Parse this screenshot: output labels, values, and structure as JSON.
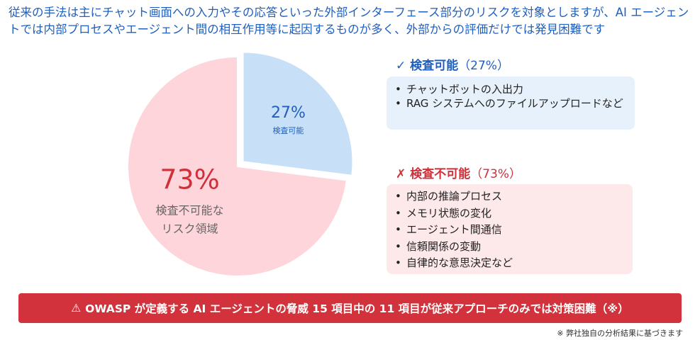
{
  "headline": "従来の手法は主にチャット画面への入力やその応答といった外部インターフェース部分のリスクを対象としますが、AI エージェントでは内部プロセスやエージェント間の相互作用等に起因するものが多く、外部からの評価だけでは発見困難です",
  "chart_data": {
    "type": "pie",
    "slices": [
      {
        "value": 27,
        "label": "27%",
        "sublabel": [
          "検査可能"
        ],
        "color": "#c8e0f7",
        "exploded": true
      },
      {
        "value": 73,
        "label": "73%",
        "sublabel": [
          "検査不可能な",
          "リスク領域"
        ],
        "color": "#fdd5da",
        "exploded": false
      }
    ]
  },
  "colors": {
    "blue_label": "#1f5fbf",
    "red_label": "#d0303a",
    "sublabel": "#666666"
  },
  "inspectable": {
    "icon": "checkmark-icon",
    "mark": "✓",
    "title": "検査可能",
    "pct": "（27%）",
    "items": [
      "チャットボットの入出力",
      "RAG システムへのファイルアップロードなど"
    ]
  },
  "uninspectable": {
    "icon": "cross-icon",
    "mark": "✗",
    "title": "検査不可能",
    "pct": "（73%）",
    "items": [
      "内部の推論プロセス",
      "メモリ状態の変化",
      "エージェント間通信",
      "信頼関係の変動",
      "自律的な意思決定など"
    ]
  },
  "banner": {
    "icon": "warning-icon",
    "mark": "⚠",
    "text": "OWASP が定義する AI エージェントの脅威 15 項目中の 11 項目が従来アプローチのみでは対策困難（※）"
  },
  "footnote": "※ 弊社独自の分析結果に基づきます"
}
